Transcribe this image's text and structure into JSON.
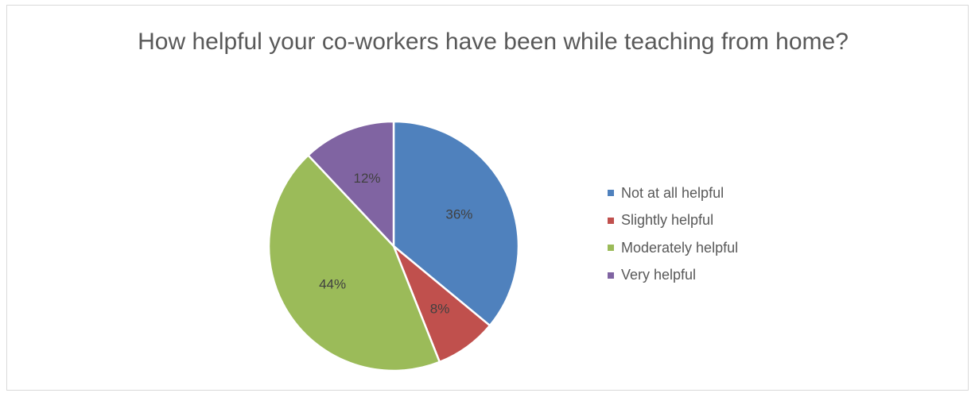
{
  "chart_data": {
    "type": "pie",
    "title": "How helpful your co-workers have been while teaching from home?",
    "slices": [
      {
        "label": "Not at all helpful",
        "value": 36,
        "display": "36%",
        "color": "#4f81bd"
      },
      {
        "label": "Slightly helpful",
        "value": 8,
        "display": "8%",
        "color": "#c0504d"
      },
      {
        "label": "Moderately helpful",
        "value": 44,
        "display": "44%",
        "color": "#9bbb59"
      },
      {
        "label": "Very helpful",
        "value": 12,
        "display": "12%",
        "color": "#8064a2"
      }
    ],
    "legend_position": "right",
    "start_angle": "top, clockwise"
  }
}
